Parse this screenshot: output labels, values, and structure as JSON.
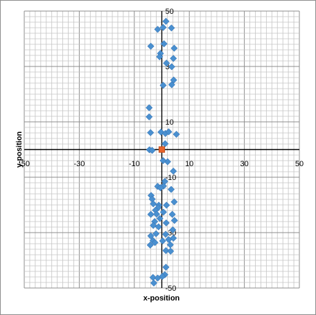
{
  "chart_data": {
    "type": "scatter",
    "xlabel": "x-position",
    "ylabel": "y-position",
    "xlim": [
      -50,
      50
    ],
    "ylim": [
      -50,
      50
    ],
    "x_ticks": [
      -50,
      -30,
      -10,
      10,
      30,
      50
    ],
    "y_ticks": [
      -50,
      -30,
      -10,
      10,
      30,
      50
    ],
    "x_tick_labels": [
      "-50",
      "-30",
      "-10",
      "10",
      "30",
      "50"
    ],
    "y_tick_labels": [
      "-50",
      "-30",
      "-10",
      "10",
      "30",
      "50"
    ],
    "minor_grid_step": 2,
    "grid": true,
    "legend": "none",
    "series": [
      {
        "color": "#4a90d0",
        "marker": "diamond",
        "points": [
          [
            1.5,
            46.3
          ],
          [
            -1.5,
            43.4
          ],
          [
            0.5,
            44.1
          ],
          [
            3.5,
            43.9
          ],
          [
            -4,
            37.3
          ],
          [
            0.8,
            38.2
          ],
          [
            4.5,
            36.6
          ],
          [
            -0.5,
            34.7
          ],
          [
            -0.8,
            33.5
          ],
          [
            4.2,
            32.9
          ],
          [
            1.7,
            31.2
          ],
          [
            3.6,
            29.9
          ],
          [
            4.3,
            25.1
          ],
          [
            3.6,
            23.4
          ],
          [
            0.5,
            23.2
          ],
          [
            -4.6,
            15.1
          ],
          [
            -4.6,
            11.8
          ],
          [
            -4.1,
            6.1
          ],
          [
            -0.3,
            6.3
          ],
          [
            1.3,
            5.8
          ],
          [
            2.5,
            6.4
          ],
          [
            5.3,
            5.5
          ],
          [
            1.2,
            2.1
          ],
          [
            -4.5,
            -0.1
          ],
          [
            -3.5,
            -0.3
          ],
          [
            2.1,
            -4.4
          ],
          [
            0.5,
            -4.0
          ],
          [
            4.2,
            -7.8
          ],
          [
            1.1,
            -11.5
          ],
          [
            -1.5,
            -13.3
          ],
          [
            0.6,
            -13.2
          ],
          [
            -0.5,
            -13.8
          ],
          [
            3.4,
            -14.4
          ],
          [
            -3.9,
            -16.6
          ],
          [
            -3.5,
            -17.9
          ],
          [
            4.5,
            -18.9
          ],
          [
            -3.1,
            -19.6
          ],
          [
            -1.1,
            -20.1
          ],
          [
            1.7,
            -20.1
          ],
          [
            -1.3,
            -21.0
          ],
          [
            -2.3,
            -21.9
          ],
          [
            0.6,
            -22.6
          ],
          [
            -4.0,
            -23.4
          ],
          [
            -1.9,
            -23.3
          ],
          [
            3.8,
            -23.4
          ],
          [
            -0.7,
            -24.9
          ],
          [
            4.6,
            -25.6
          ],
          [
            -2.6,
            -26.0
          ],
          [
            1.6,
            -26.5
          ],
          [
            -3.1,
            -27.4
          ],
          [
            -1.2,
            -27.9
          ],
          [
            4.0,
            -29.0
          ],
          [
            -2.1,
            -30.4
          ],
          [
            1.4,
            -30.6
          ],
          [
            -4.0,
            -31.2
          ],
          [
            2.5,
            -32.5
          ],
          [
            4.2,
            -32.0
          ],
          [
            -3.2,
            -32.9
          ],
          [
            0.3,
            -33.0
          ],
          [
            -2.5,
            -33.6
          ],
          [
            -4.2,
            -34.5
          ],
          [
            3.1,
            -34.4
          ],
          [
            1.5,
            -36.5
          ],
          [
            3.2,
            -36.7
          ],
          [
            1.5,
            -42.5
          ],
          [
            1.1,
            -45.2
          ],
          [
            -3.2,
            -46.2
          ],
          [
            -1.5,
            -46.4
          ],
          [
            0.2,
            -45.8
          ],
          [
            -2.9,
            -48.2
          ]
        ]
      },
      {
        "color": "#e8642c",
        "marker": "square",
        "points": [
          [
            0,
            0
          ]
        ]
      }
    ]
  }
}
